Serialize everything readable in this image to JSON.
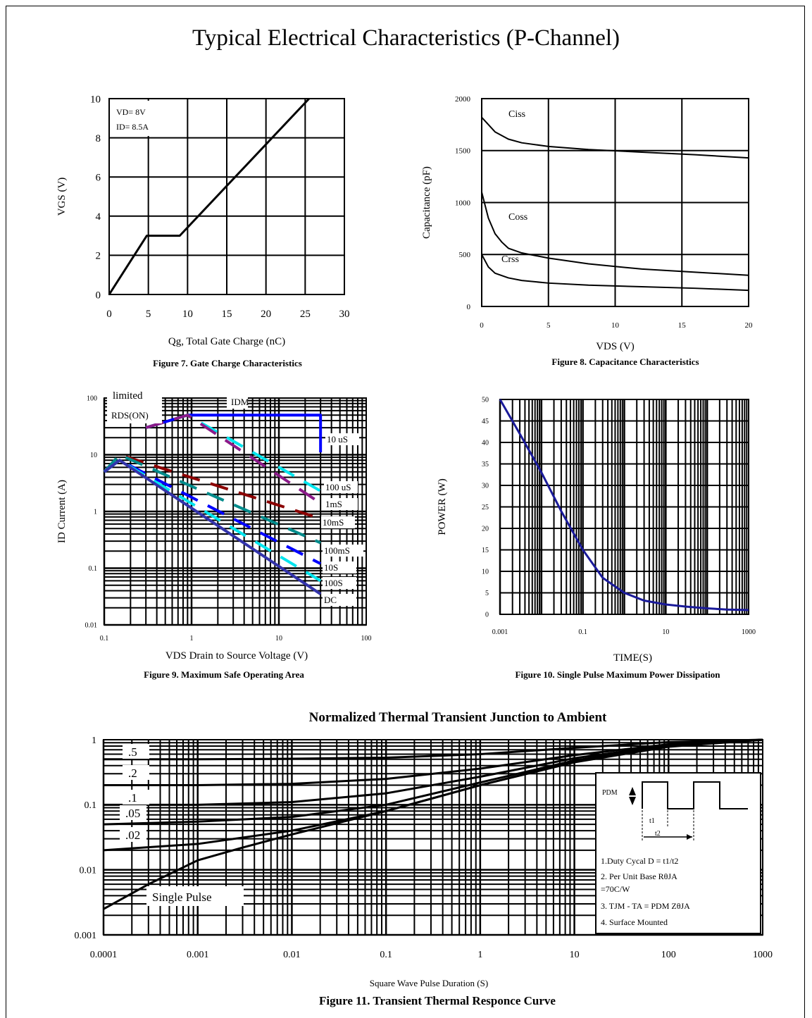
{
  "page": {
    "title": "Typical Electrical Characteristics (P-Channel)"
  },
  "chart_data": [
    {
      "id": "fig7",
      "type": "line",
      "caption": "Figure 7. Gate Charge Characteristics",
      "xlabel": "Qg, Total Gate Charge (nC)",
      "ylabel": "VGS (V)",
      "xlim": [
        0,
        30
      ],
      "ylim": [
        0,
        10
      ],
      "xticks": [
        "0",
        "5",
        "10",
        "15",
        "20",
        "25",
        "30"
      ],
      "yticks": [
        "0",
        "2",
        "4",
        "6",
        "8",
        "10"
      ],
      "grid": true,
      "annotations": [
        "VD= 8V",
        "ID= 8.5A"
      ],
      "series": [
        {
          "x": [
            0,
            4.8,
            9,
            25.5
          ],
          "y": [
            0,
            3,
            3,
            10
          ]
        }
      ]
    },
    {
      "id": "fig8",
      "type": "line",
      "caption": "Figure 8. Capacitance Characteristics",
      "xlabel": "VDS (V)",
      "ylabel": "Capacitance (pF)",
      "xlim": [
        0,
        20
      ],
      "ylim": [
        0,
        2000
      ],
      "xticks": [
        "0",
        "5",
        "10",
        "15",
        "20"
      ],
      "yticks": [
        "0",
        "500",
        "1000",
        "1500",
        "2000"
      ],
      "grid": true,
      "series": [
        {
          "name": "Ciss",
          "x": [
            0,
            1,
            2,
            3,
            5,
            8,
            12,
            16,
            20
          ],
          "y": [
            1820,
            1680,
            1610,
            1575,
            1540,
            1510,
            1485,
            1460,
            1430
          ]
        },
        {
          "name": "Coss",
          "x": [
            0,
            0.5,
            1,
            1.5,
            2,
            3,
            5,
            8,
            12,
            16,
            20
          ],
          "y": [
            1100,
            850,
            700,
            620,
            560,
            515,
            465,
            410,
            360,
            330,
            300
          ]
        },
        {
          "name": "Crss",
          "x": [
            0,
            0.5,
            1,
            2,
            3,
            5,
            8,
            12,
            16,
            20
          ],
          "y": [
            500,
            380,
            320,
            275,
            250,
            225,
            205,
            190,
            175,
            155
          ]
        }
      ]
    },
    {
      "id": "fig9",
      "type": "line",
      "caption": "Figure 9. Maximum Safe Operating Area",
      "xlabel": "VDS Drain to Source Voltage (V)",
      "ylabel": "ID Current (A)",
      "xscale": "log",
      "yscale": "log",
      "xlim": [
        0.1,
        100
      ],
      "ylim": [
        0.01,
        100
      ],
      "xticks": [
        "0.1",
        "1",
        "10",
        "100"
      ],
      "yticks": [
        "0.01",
        "0.1",
        "1",
        "10",
        "100"
      ],
      "grid": true,
      "annotations": [
        "limited",
        "RDS(ON)",
        "IDM"
      ],
      "series": [
        {
          "name": "10 uS",
          "x": [
            0.3,
            0.9,
            30,
            30
          ],
          "y": [
            30,
            50,
            50,
            11
          ]
        },
        {
          "name": "100 uS",
          "x": [
            0.3,
            0.9,
            30
          ],
          "y": [
            30,
            50,
            2.3
          ]
        },
        {
          "name": "1mS",
          "x": [
            0.3,
            0.9,
            30
          ],
          "y": [
            30,
            50,
            1.4
          ]
        },
        {
          "name": "10mS",
          "x": [
            0.1,
            0.15,
            30
          ],
          "y": [
            5,
            10,
            0.75
          ]
        },
        {
          "name": "100mS",
          "x": [
            0.1,
            0.15,
            30
          ],
          "y": [
            5,
            10,
            0.28
          ]
        },
        {
          "name": "10S",
          "x": [
            0.1,
            0.15,
            30
          ],
          "y": [
            5,
            8,
            0.12
          ]
        },
        {
          "name": "100S",
          "x": [
            0.1,
            0.15,
            30
          ],
          "y": [
            5,
            8,
            0.06
          ]
        },
        {
          "name": "DC",
          "x": [
            0.1,
            0.15,
            30
          ],
          "y": [
            5,
            8,
            0.035
          ]
        }
      ]
    },
    {
      "id": "fig10",
      "type": "line",
      "caption": "Figure 10. Single Pulse Maximum Power Dissipation",
      "xlabel": "TIME(S)",
      "ylabel": "POWER (W)",
      "xscale": "log",
      "xlim": [
        0.001,
        1000
      ],
      "ylim": [
        0,
        50
      ],
      "xticks": [
        "0.001",
        "0.1",
        "10",
        "1000"
      ],
      "yticks": [
        "0",
        "5",
        "10",
        "15",
        "20",
        "25",
        "30",
        "35",
        "40",
        "45",
        "50"
      ],
      "grid": true,
      "series": [
        {
          "x": [
            0.001,
            0.003,
            0.01,
            0.03,
            0.1,
            0.3,
            1,
            3,
            10,
            30,
            100,
            300,
            1000
          ],
          "y": [
            50,
            42,
            33,
            24,
            15,
            8.5,
            5,
            3.2,
            2.3,
            1.8,
            1.4,
            1.1,
            1.0
          ]
        }
      ]
    },
    {
      "id": "fig11",
      "type": "line",
      "title": "Normalized Thermal Transient Junction to Ambient",
      "caption": "Figure 11. Transient Thermal Responce Curve",
      "xlabel": "Square Wave Pulse Duration (S)",
      "ylabel": "",
      "xscale": "log",
      "yscale": "log",
      "xlim": [
        0.0001,
        1000
      ],
      "ylim": [
        0.001,
        1
      ],
      "xticks": [
        "0.0001",
        "0.001",
        "0.01",
        "0.1",
        "1",
        "10",
        "100",
        "1000"
      ],
      "yticks": [
        "0.001",
        "0.01",
        "0.1",
        "1"
      ],
      "grid": true,
      "notes": [
        "PDM",
        "t1",
        "t2",
        "1.Duty Cycal D = t1/t2",
        "2. Per Unit Base RθJA =70C/W",
        "3. TJM - TA = PDM ZθJA",
        "4. Surface Mounted"
      ],
      "series": [
        {
          "name": ".5",
          "x": [
            0.0001,
            0.001,
            0.01,
            0.1,
            1,
            10,
            100,
            1000
          ],
          "y": [
            0.5,
            0.5,
            0.51,
            0.53,
            0.6,
            0.75,
            0.92,
            1.0
          ]
        },
        {
          "name": ".2",
          "x": [
            0.0001,
            0.001,
            0.01,
            0.1,
            1,
            10,
            100,
            1000
          ],
          "y": [
            0.2,
            0.2,
            0.21,
            0.25,
            0.36,
            0.58,
            0.85,
            1.0
          ]
        },
        {
          "name": ".1",
          "x": [
            0.0001,
            0.001,
            0.01,
            0.1,
            1,
            10,
            100,
            1000
          ],
          "y": [
            0.1,
            0.1,
            0.11,
            0.15,
            0.27,
            0.52,
            0.82,
            1.0
          ]
        },
        {
          "name": ".05",
          "x": [
            0.0001,
            0.001,
            0.01,
            0.1,
            1,
            10,
            100,
            1000
          ],
          "y": [
            0.05,
            0.055,
            0.065,
            0.1,
            0.22,
            0.48,
            0.8,
            1.0
          ]
        },
        {
          "name": ".02",
          "x": [
            0.0001,
            0.001,
            0.01,
            0.1,
            1,
            10,
            100,
            1000
          ],
          "y": [
            0.02,
            0.025,
            0.04,
            0.08,
            0.2,
            0.46,
            0.79,
            1.0
          ]
        },
        {
          "name": "Single Pulse",
          "x": [
            0.0001,
            0.0003,
            0.001,
            0.003,
            0.01,
            0.1,
            1,
            10,
            100,
            1000
          ],
          "y": [
            0.0025,
            0.006,
            0.014,
            0.022,
            0.035,
            0.08,
            0.2,
            0.45,
            0.78,
            1.0
          ]
        }
      ]
    }
  ]
}
